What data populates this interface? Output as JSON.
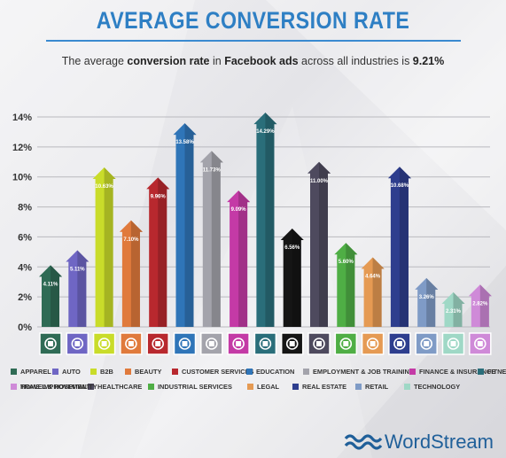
{
  "header": {
    "title": "AVERAGE CONVERSION RATE",
    "subtitle_pre": "The average ",
    "subtitle_b1": "conversion rate",
    "subtitle_mid1": " in ",
    "subtitle_b2": "Facebook ads",
    "subtitle_mid2": " across all industries is ",
    "subtitle_b3": "9.21%"
  },
  "brand": {
    "name": "WordStream",
    "color": "#1f5f99"
  },
  "chart_data": {
    "type": "bar",
    "title": "AVERAGE CONVERSION RATE",
    "xlabel": "",
    "ylabel": "",
    "ylim": [
      0,
      14
    ],
    "yticks": [
      "0%",
      "2%",
      "4%",
      "6%",
      "8%",
      "10%",
      "12%",
      "14%"
    ],
    "grid": true,
    "legend_position": "bottom",
    "categories": [
      "APPAREL",
      "AUTO",
      "B2B",
      "BEAUTY",
      "CUSTOMER SERVICES",
      "EDUCATION",
      "EMPLOYMENT & JOB TRAINING",
      "FINANCE & INSURANCE",
      "FITNESS",
      "HOME IMPROVEMENT",
      "HEALTHCARE",
      "INDUSTRIAL SERVICES",
      "LEGAL",
      "REAL ESTATE",
      "RETAIL",
      "TECHNOLOGY",
      "TRAVEL & HOSPITALITY"
    ],
    "values": [
      4.11,
      5.11,
      10.63,
      7.1,
      9.96,
      13.58,
      11.73,
      9.09,
      14.29,
      6.56,
      11.0,
      5.6,
      4.64,
      10.68,
      3.26,
      2.31,
      2.82
    ],
    "labels": [
      "4.11%",
      "5.11%",
      "10.63%",
      "7.10%",
      "9.96%",
      "13.58%",
      "11.73%",
      "9.09%",
      "14.29%",
      "6.56%",
      "11.00%",
      "5.60%",
      "4.64%",
      "10.68%",
      "3.26%",
      "2.31%",
      "2.82%"
    ],
    "colors": [
      "#2f6b55",
      "#6f66c4",
      "#c9dc2a",
      "#e07a3c",
      "#b8282e",
      "#2f75b8",
      "#a3a3ab",
      "#c43aa6",
      "#2a6e7a",
      "#151515",
      "#4e4a5e",
      "#4fae45",
      "#e59a53",
      "#2e3e8e",
      "#7f9bc6",
      "#9fd8c6",
      "#cf8ad8"
    ],
    "icons": [
      "shirt-icon",
      "car-icon",
      "handshake-icon",
      "mirror-icon",
      "headset-icon",
      "book-icon",
      "briefcase-icon",
      "money-bag-icon",
      "bicep-icon",
      "tools-icon",
      "first-aid-icon",
      "factory-icon",
      "gavel-icon",
      "house-icon",
      "tag-icon",
      "laptop-icon",
      "map-pin-icon"
    ]
  }
}
